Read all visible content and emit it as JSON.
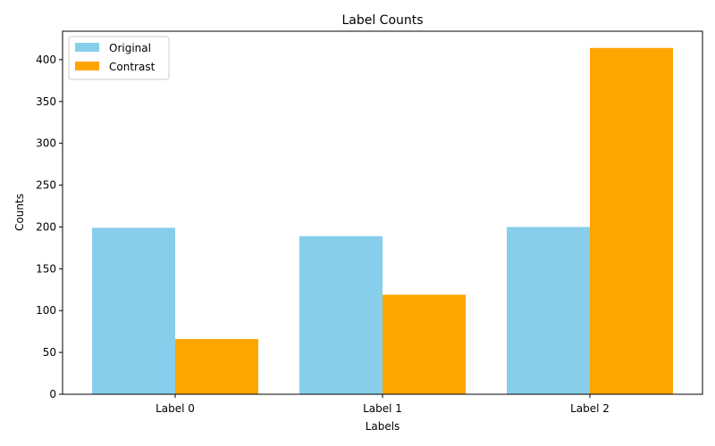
{
  "chart_data": {
    "type": "bar",
    "title": "Label Counts",
    "xlabel": "Labels",
    "ylabel": "Counts",
    "categories": [
      "Label 0",
      "Label 1",
      "Label 2"
    ],
    "series": [
      {
        "name": "Original",
        "values": [
          199,
          189,
          200
        ],
        "color": "#87ceeb"
      },
      {
        "name": "Contrast",
        "values": [
          66,
          119,
          414
        ],
        "color": "#ffa500"
      }
    ],
    "ylim": [
      0,
      434
    ],
    "yticks": [
      0,
      50,
      100,
      150,
      200,
      250,
      300,
      350,
      400
    ],
    "legend": "top-left",
    "grid": false
  }
}
